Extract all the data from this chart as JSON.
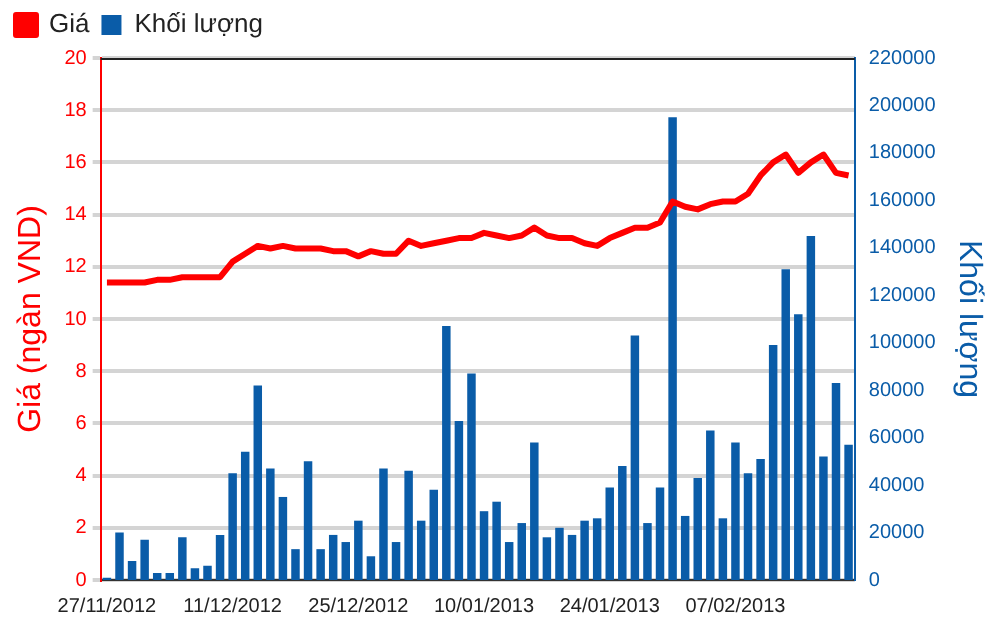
{
  "chart_data": {
    "type": "bar",
    "categories": [
      "27/11/2012",
      null,
      null,
      null,
      null,
      null,
      null,
      null,
      null,
      null,
      "11/12/2012",
      null,
      null,
      null,
      null,
      null,
      null,
      null,
      null,
      null,
      "25/12/2012",
      null,
      null,
      null,
      null,
      null,
      null,
      null,
      null,
      null,
      "10/01/2013",
      null,
      null,
      null,
      null,
      null,
      null,
      null,
      null,
      null,
      "24/01/2013",
      null,
      null,
      null,
      null,
      null,
      null,
      null,
      null,
      null,
      "07/02/2013",
      null,
      null,
      null,
      null,
      null,
      null,
      null,
      null,
      null
    ],
    "series": [
      {
        "name": "Giá",
        "type": "line",
        "color": "#ff0000",
        "values": [
          11.4,
          11.4,
          11.4,
          11.4,
          11.5,
          11.5,
          11.6,
          11.6,
          11.6,
          11.6,
          12.2,
          12.5,
          12.8,
          12.7,
          12.8,
          12.7,
          12.7,
          12.7,
          12.6,
          12.6,
          12.4,
          12.6,
          12.5,
          12.5,
          13.0,
          12.8,
          12.9,
          13.0,
          13.1,
          13.1,
          13.3,
          13.2,
          13.1,
          13.2,
          13.5,
          13.2,
          13.1,
          13.1,
          12.9,
          12.8,
          13.1,
          13.3,
          13.5,
          13.5,
          13.7,
          14.5,
          14.3,
          14.2,
          14.4,
          14.5,
          14.5,
          14.8,
          15.5,
          16.0,
          16.3,
          15.6,
          16.0,
          16.3,
          15.6,
          15.5
        ]
      },
      {
        "name": "Khối lượng",
        "axis": "y2",
        "color": "#0a5ca8",
        "values": [
          1000,
          20000,
          8000,
          17000,
          3000,
          3000,
          18000,
          5000,
          6000,
          19000,
          45000,
          54000,
          82000,
          47000,
          35000,
          13000,
          50000,
          13000,
          19000,
          16000,
          25000,
          10000,
          47000,
          16000,
          46000,
          25000,
          38000,
          107000,
          67000,
          87000,
          29000,
          33000,
          16000,
          24000,
          58000,
          18000,
          22000,
          19000,
          25000,
          26000,
          39000,
          48000,
          103000,
          24000,
          39000,
          195000,
          27000,
          43000,
          63000,
          26000,
          58000,
          45000,
          51000,
          99000,
          131000,
          112000,
          145000,
          52000,
          83000,
          57000
        ]
      }
    ],
    "ylabel": "Giá (ngàn VND)",
    "y2label": "Khối lượng",
    "ylim": [
      0,
      20
    ],
    "yticks": [
      0,
      2,
      4,
      6,
      8,
      10,
      12,
      14,
      16,
      18,
      20
    ],
    "y2lim": [
      0,
      220000
    ],
    "y2ticks": [
      0,
      20000,
      40000,
      60000,
      80000,
      100000,
      120000,
      140000,
      160000,
      180000,
      200000,
      220000
    ],
    "grid": "y",
    "legend": "top left"
  }
}
